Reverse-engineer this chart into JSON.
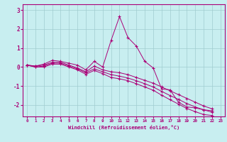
{
  "xlabel": "Windchill (Refroidissement éolien,°C)",
  "background_color": "#c8eef0",
  "grid_color": "#a0ccd0",
  "line_color": "#aa0077",
  "xlim": [
    -0.5,
    23.5
  ],
  "ylim": [
    -2.6,
    3.3
  ],
  "yticks": [
    -2,
    -1,
    0,
    1,
    2,
    3
  ],
  "xticks": [
    0,
    1,
    2,
    3,
    4,
    5,
    6,
    7,
    8,
    9,
    10,
    11,
    12,
    13,
    14,
    15,
    16,
    17,
    18,
    19,
    20,
    21,
    22,
    23
  ],
  "series": [
    [
      0.1,
      0.05,
      0.15,
      0.35,
      0.3,
      0.2,
      0.1,
      -0.15,
      0.3,
      0.0,
      1.4,
      2.65,
      1.55,
      1.1,
      0.3,
      -0.05,
      -1.15,
      -1.2,
      -1.85,
      -2.1,
      -2.15,
      -2.25,
      -2.3
    ],
    [
      0.1,
      0.05,
      0.1,
      0.25,
      0.25,
      0.1,
      -0.05,
      -0.25,
      0.05,
      -0.15,
      -0.25,
      -0.3,
      -0.4,
      -0.55,
      -0.7,
      -0.85,
      -1.05,
      -1.25,
      -1.45,
      -1.65,
      -1.85,
      -2.05,
      -2.2
    ],
    [
      0.1,
      0.0,
      0.05,
      0.2,
      0.2,
      0.05,
      -0.1,
      -0.3,
      -0.1,
      -0.25,
      -0.4,
      -0.48,
      -0.58,
      -0.72,
      -0.88,
      -1.05,
      -1.28,
      -1.5,
      -1.7,
      -1.92,
      -2.1,
      -2.25,
      -2.38
    ],
    [
      0.1,
      0.0,
      0.0,
      0.15,
      0.15,
      0.0,
      -0.15,
      -0.38,
      -0.18,
      -0.35,
      -0.55,
      -0.62,
      -0.72,
      -0.88,
      -1.05,
      -1.22,
      -1.48,
      -1.72,
      -1.95,
      -2.18,
      -2.35,
      -2.5,
      -2.55
    ]
  ]
}
